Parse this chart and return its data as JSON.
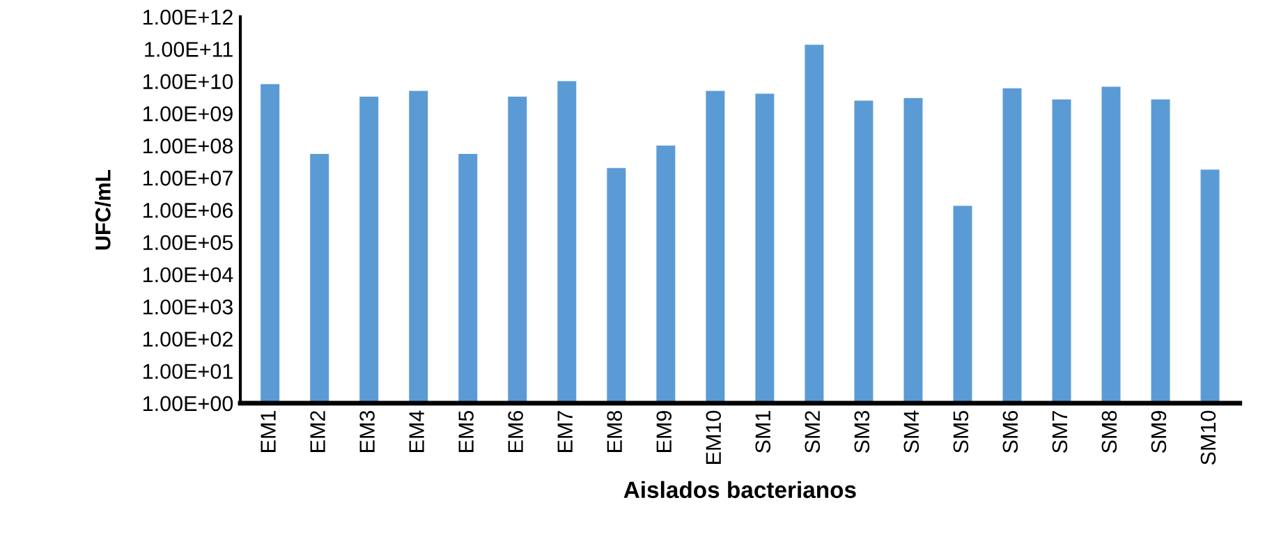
{
  "chart_data": {
    "type": "bar",
    "xlabel": "Aislados bacterianos",
    "ylabel": "UFC/mL",
    "log": "y",
    "grid": false,
    "legend": false,
    "categories": [
      "EM1",
      "EM2",
      "EM3",
      "EM4",
      "EM5",
      "EM6",
      "EM7",
      "EM8",
      "EM9",
      "EM10",
      "SM1",
      "SM2",
      "SM3",
      "SM4",
      "SM5",
      "SM6",
      "SM7",
      "SM8",
      "SM9",
      "SM10"
    ],
    "series": [
      {
        "color": "#5b9bd5",
        "values": [
          8100000000.0,
          55000000.0,
          3300000000.0,
          5000000000.0,
          55000000.0,
          3300000000.0,
          10000000000.0,
          20000000.0,
          100000000.0,
          5000000000.0,
          4100000000.0,
          135000000000.0,
          2500000000.0,
          3000000000.0,
          1350000.0,
          6000000000.0,
          2700000000.0,
          6700000000.0,
          2700000000.0,
          18000000.0
        ]
      }
    ],
    "ylim": [
      1,
      1000000000000.0
    ],
    "yticks": [
      {
        "value": 1,
        "label": "1.00E+00"
      },
      {
        "value": 10,
        "label": "1.00E+01"
      },
      {
        "value": 100,
        "label": "1.00E+02"
      },
      {
        "value": 1000,
        "label": "1.00E+03"
      },
      {
        "value": 10000,
        "label": "1.00E+04"
      },
      {
        "value": 100000,
        "label": "1.00E+05"
      },
      {
        "value": 1000000,
        "label": "1.00E+06"
      },
      {
        "value": 10000000,
        "label": "1.00E+07"
      },
      {
        "value": 100000000,
        "label": "1.00E+08"
      },
      {
        "value": 1000000000,
        "label": "1.00E+09"
      },
      {
        "value": 10000000000,
        "label": "1.00E+10"
      },
      {
        "value": 100000000000,
        "label": "1.00E+11"
      },
      {
        "value": 1000000000000,
        "label": "1.00E+12"
      }
    ]
  }
}
